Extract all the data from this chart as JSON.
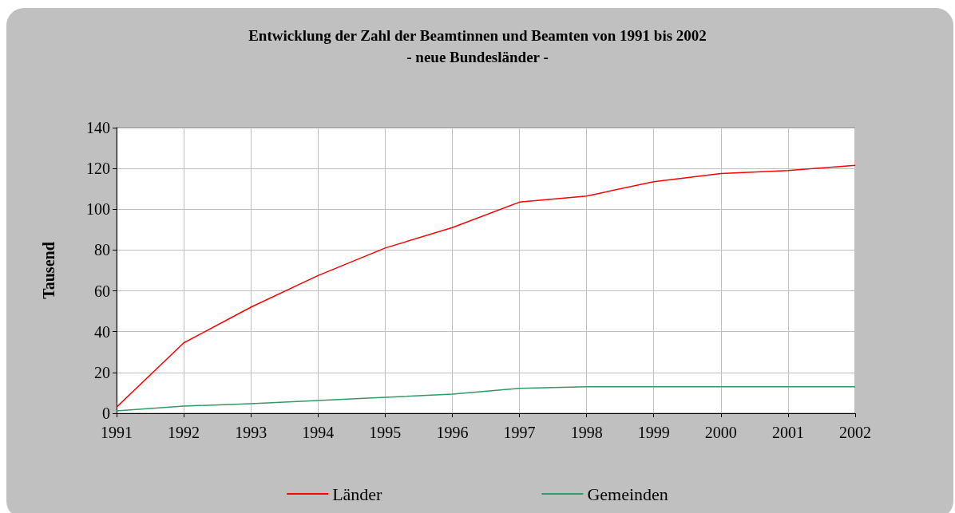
{
  "chart_data": {
    "type": "line",
    "title": "Entwicklung der Zahl der Beamtinnen und Beamten von 1991 bis 2002",
    "subtitle": "- neue Bundesländer -",
    "ylabel": "Tausend",
    "categories": [
      "1991",
      "1992",
      "1993",
      "1994",
      "1995",
      "1996",
      "1997",
      "1998",
      "1999",
      "2000",
      "2001",
      "2002"
    ],
    "series": [
      {
        "name": "Länder",
        "color": "#ff0000",
        "values": [
          3,
          34.5,
          52,
          67.5,
          81,
          91,
          103.5,
          106.5,
          113.5,
          117.5,
          119,
          121.5
        ]
      },
      {
        "name": "Gemeinden",
        "color": "#339966",
        "values": [
          1.2,
          3.5,
          4.7,
          6.3,
          7.8,
          9.4,
          12.2,
          13,
          13,
          13,
          13,
          13
        ]
      }
    ],
    "ylim": [
      0,
      140
    ],
    "yticks": [
      0,
      20,
      40,
      60,
      80,
      100,
      120,
      140
    ],
    "grid": true,
    "legend": "bottom",
    "marker": "none",
    "line_style": "solid"
  }
}
